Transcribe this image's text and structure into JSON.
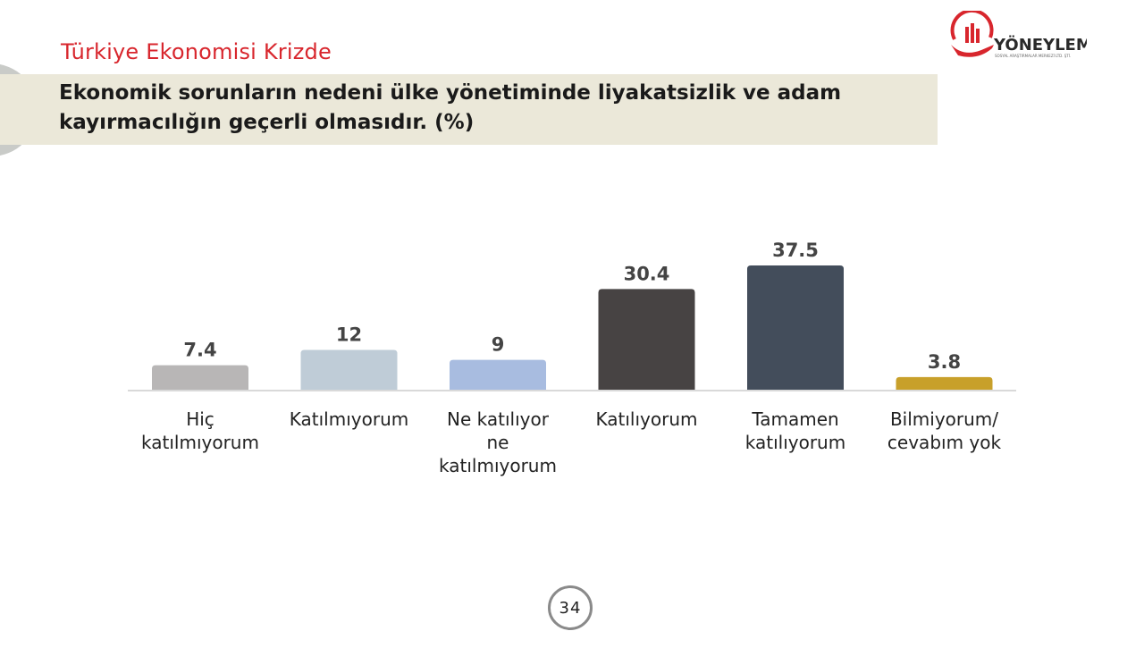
{
  "header": {
    "section_title": "Türkiye Ekonomisi Krizde",
    "question_line1": "Ekonomik sorunların nedeni ülke yönetiminde liyakatsizlik ve adam",
    "question_line2": "kayırmacılığın geçerli olmasıdır. (%)"
  },
  "logo": {
    "name": "YÖNEYLEM",
    "subtitle": "SOSYAL ARAŞTIRMALAR MERKEZİ LTD. ŞTİ.",
    "color": "#d8262d"
  },
  "chart_data": {
    "type": "bar",
    "categories": [
      [
        "Hiç",
        "katılmıyorum"
      ],
      [
        "Katılmıyorum"
      ],
      [
        "Ne katılıyor",
        "ne",
        "katılmıyorum"
      ],
      [
        "Katılıyorum"
      ],
      [
        "Tamamen",
        "katılıyorum"
      ],
      [
        "Bilmiyorum/",
        "cevabım yok"
      ]
    ],
    "values": [
      7.4,
      12,
      9,
      30.4,
      37.5,
      3.8
    ],
    "value_labels": [
      "7.4",
      "12",
      "9",
      "30.4",
      "37.5",
      "3.8"
    ],
    "colors": [
      "#b8b6b6",
      "#bfccd7",
      "#a8bce0",
      "#474343",
      "#434d5b",
      "#c8a02a"
    ],
    "ylim": [
      0,
      40
    ],
    "grid": false,
    "legend": "none"
  },
  "footer": {
    "page_number": "34"
  }
}
